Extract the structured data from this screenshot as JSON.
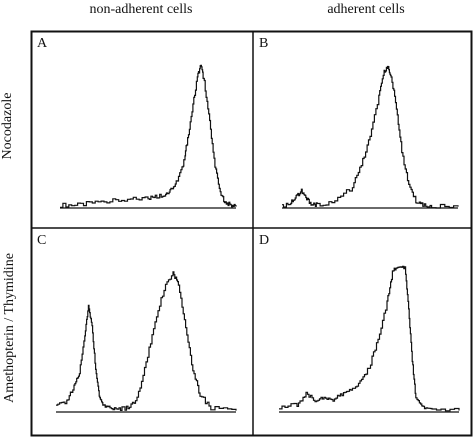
{
  "column_titles": [
    "non-adherent cells",
    "adherent cells"
  ],
  "row_titles": [
    "Nocodazole",
    "Amethopterin / Thymidine"
  ],
  "chart_data": {
    "type": "line",
    "grid": false,
    "legend": false,
    "axes_visible": false,
    "line_color": "#111111",
    "panels": [
      {
        "label": "A",
        "column": "non-adherent cells",
        "row": "Nocodazole",
        "x": [
          0,
          0.1,
          0.2,
          0.3,
          0.4,
          0.5,
          0.55,
          0.6,
          0.63,
          0.66,
          0.7,
          0.72,
          0.75,
          0.78,
          0.8,
          0.82,
          0.85,
          0.88,
          0.91,
          0.94,
          0.97,
          1
        ],
        "y": [
          0.02,
          0.02,
          0.04,
          0.05,
          0.06,
          0.07,
          0.08,
          0.1,
          0.13,
          0.18,
          0.3,
          0.45,
          0.68,
          0.92,
          1.0,
          0.88,
          0.6,
          0.3,
          0.1,
          0.04,
          0.02,
          0.01
        ],
        "ylim": [
          0,
          1.05
        ]
      },
      {
        "label": "B",
        "column": "adherent cells",
        "row": "Nocodazole",
        "x": [
          0,
          0.05,
          0.08,
          0.11,
          0.14,
          0.17,
          0.2,
          0.3,
          0.4,
          0.45,
          0.5,
          0.55,
          0.58,
          0.6,
          0.62,
          0.65,
          0.68,
          0.72,
          0.76,
          0.8,
          0.85,
          1
        ],
        "y": [
          0.01,
          0.04,
          0.08,
          0.12,
          0.06,
          0.03,
          0.02,
          0.05,
          0.15,
          0.3,
          0.5,
          0.78,
          0.95,
          1.0,
          0.92,
          0.7,
          0.4,
          0.15,
          0.05,
          0.02,
          0.01,
          0.01
        ],
        "ylim": [
          0,
          1.05
        ]
      },
      {
        "label": "C",
        "column": "non-adherent cells",
        "row": "Amethopterin / Thymidine",
        "x": [
          0,
          0.06,
          0.1,
          0.13,
          0.16,
          0.18,
          0.2,
          0.22,
          0.24,
          0.26,
          0.3,
          0.35,
          0.4,
          0.45,
          0.5,
          0.55,
          0.6,
          0.65,
          0.68,
          0.72,
          0.76,
          0.8,
          0.86,
          1
        ],
        "y": [
          0.04,
          0.08,
          0.18,
          0.28,
          0.55,
          0.75,
          0.62,
          0.3,
          0.12,
          0.05,
          0.03,
          0.02,
          0.03,
          0.1,
          0.35,
          0.65,
          0.88,
          1.0,
          0.9,
          0.6,
          0.3,
          0.12,
          0.03,
          0.01
        ],
        "ylim": [
          0,
          1.05
        ]
      },
      {
        "label": "D",
        "column": "adherent cells",
        "row": "Amethopterin / Thymidine",
        "x": [
          0,
          0.1,
          0.15,
          0.2,
          0.25,
          0.3,
          0.35,
          0.4,
          0.45,
          0.5,
          0.55,
          0.6,
          0.63,
          0.66,
          0.7,
          0.72,
          0.74,
          0.76,
          0.8,
          0.85,
          1
        ],
        "y": [
          0.03,
          0.05,
          0.12,
          0.08,
          0.1,
          0.08,
          0.12,
          0.15,
          0.2,
          0.3,
          0.5,
          0.75,
          0.95,
          1.0,
          0.98,
          0.7,
          0.35,
          0.1,
          0.03,
          0.01,
          0.01
        ],
        "ylim": [
          0,
          1.05
        ]
      }
    ]
  }
}
